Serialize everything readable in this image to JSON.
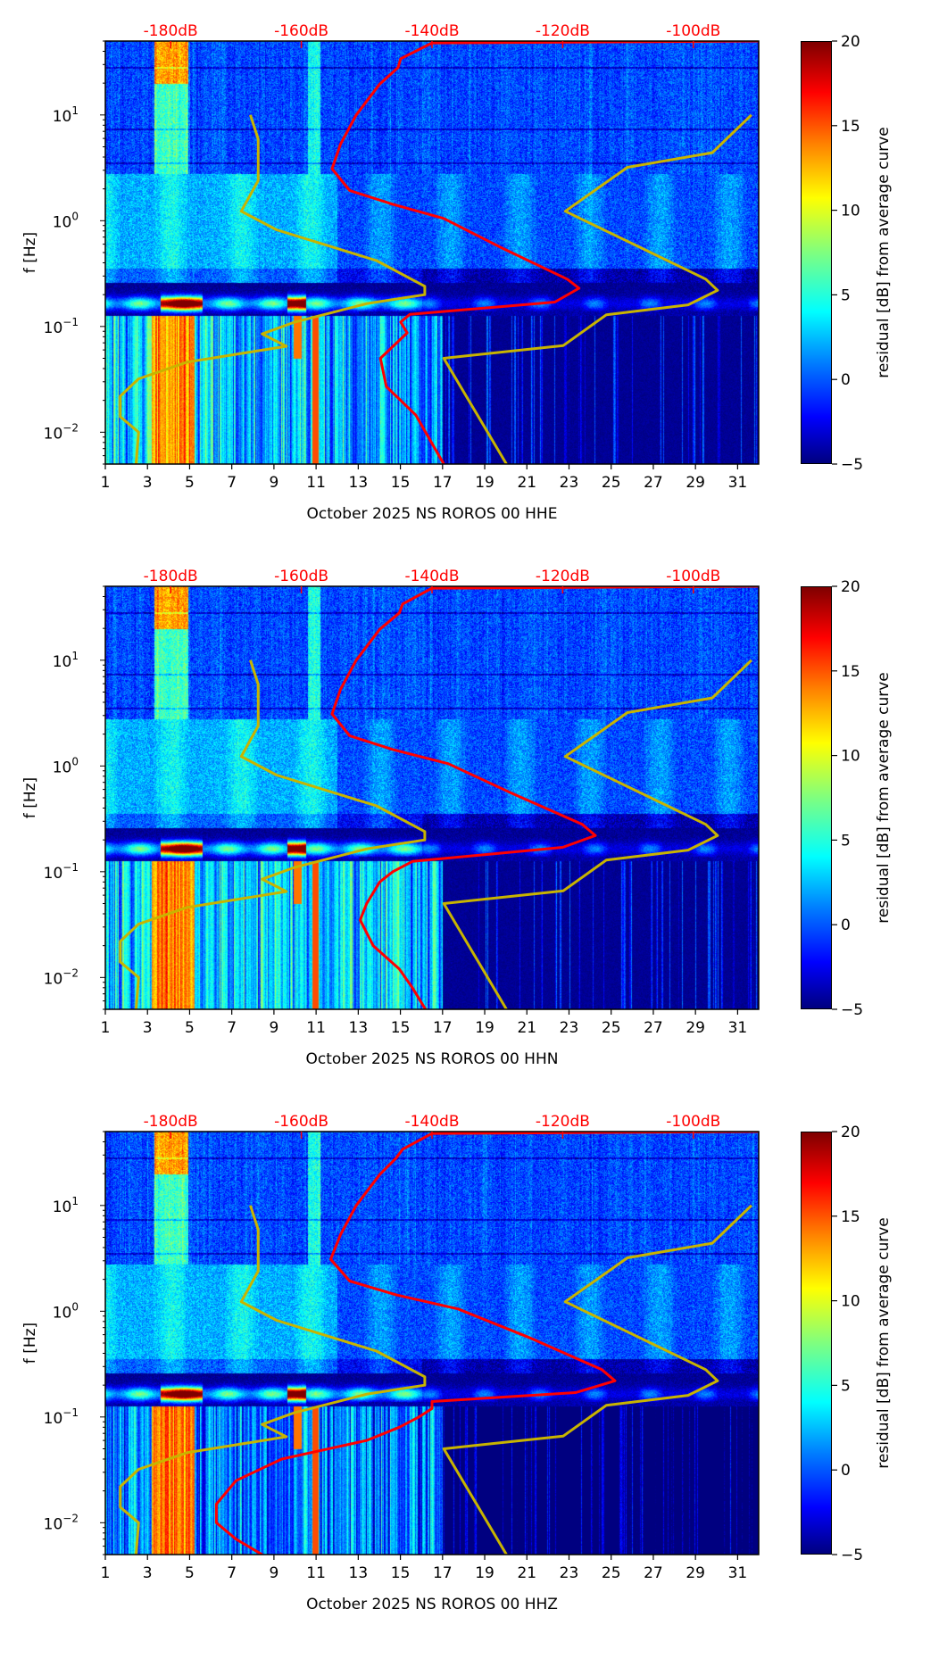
{
  "chart_data": [
    {
      "type": "heatmap",
      "title": "",
      "xlabel": "October 2025 NS ROROS 00 HHE",
      "ylabel": "f [Hz]",
      "xlim": [
        1,
        32
      ],
      "ylim": [
        0.005,
        50
      ],
      "yscale": "log",
      "xticks": [
        "1",
        "3",
        "5",
        "7",
        "9",
        "11",
        "13",
        "15",
        "17",
        "19",
        "21",
        "23",
        "25",
        "27",
        "29",
        "31"
      ],
      "yticks": [
        {
          "value": 10,
          "base": "10",
          "exp": "1"
        },
        {
          "value": 1,
          "base": "10",
          "exp": "0"
        },
        {
          "value": 0.1,
          "base": "10",
          "exp": "−1"
        },
        {
          "value": 0.01,
          "base": "10",
          "exp": "−2"
        }
      ],
      "top_axis": {
        "range_db": [
          -190,
          -90
        ],
        "values": [
          -180,
          -160,
          -140,
          -120,
          -100
        ],
        "labels": [
          "-180dB",
          "-160dB",
          "-140dB",
          "-120dB",
          "-100dB"
        ],
        "color": "#ff0000"
      },
      "colorbar": {
        "label": "residual [dB] from average curve",
        "range": [
          -5,
          20
        ],
        "values": [
          -5,
          0,
          5,
          10,
          15,
          20
        ],
        "labels": [
          "−5",
          "0",
          "5",
          "10",
          "15",
          "20"
        ],
        "colormap": "jet"
      },
      "curves": {
        "psd_curve": {
          "color": "#ff0000",
          "points": [
            [
              50,
              -90
            ],
            [
              48,
              -140
            ],
            [
              34,
              -144.8
            ],
            [
              28,
              -145.2
            ],
            [
              19.6,
              -148
            ],
            [
              10,
              -151.6
            ],
            [
              5.3,
              -154
            ],
            [
              3.1,
              -155.3
            ],
            [
              1.93,
              -152.6
            ],
            [
              1.43,
              -146
            ],
            [
              1.05,
              -138.2
            ],
            [
              0.56,
              -129.5
            ],
            [
              0.28,
              -119.3
            ],
            [
              0.23,
              -117.5
            ],
            [
              0.17,
              -121.2
            ],
            [
              0.13,
              -143.4
            ],
            [
              0.11,
              -144.8
            ],
            [
              0.087,
              -143.8
            ],
            [
              0.05,
              -147.9
            ],
            [
              0.027,
              -147
            ],
            [
              0.0146,
              -142.5
            ],
            [
              0.005,
              -138.2
            ]
          ]
        },
        "low_noise_model": {
          "color": "#c8b400",
          "points": [
            [
              10,
              -167.8
            ],
            [
              5.9,
              -166.6
            ],
            [
              2.4,
              -166.6
            ],
            [
              1.23,
              -169.2
            ],
            [
              0.82,
              -163.8
            ],
            [
              0.42,
              -148.5
            ],
            [
              0.24,
              -141.1
            ],
            [
              0.2,
              -141.1
            ],
            [
              0.165,
              -149.9
            ],
            [
              0.11,
              -161
            ],
            [
              0.085,
              -166
            ],
            [
              0.065,
              -162.3
            ],
            [
              0.046,
              -177.5
            ],
            [
              0.032,
              -184.9
            ],
            [
              0.022,
              -187.7
            ],
            [
              0.014,
              -187.7
            ],
            [
              0.01,
              -184.9
            ],
            [
              0.005,
              -185.3
            ]
          ]
        },
        "high_noise_model": {
          "color": "#c8b400",
          "points": [
            [
              10,
              -91.1
            ],
            [
              4.4,
              -97.1
            ],
            [
              3.2,
              -110.1
            ],
            [
              1.23,
              -119.6
            ],
            [
              0.28,
              -98.1
            ],
            [
              0.22,
              -96.3
            ],
            [
              0.16,
              -100.8
            ],
            [
              0.129,
              -113.3
            ],
            [
              0.066,
              -119.9
            ],
            [
              0.05,
              -138.2
            ],
            [
              0.005,
              -128.6
            ]
          ]
        }
      }
    },
    {
      "type": "heatmap",
      "title": "",
      "xlabel": "October 2025 NS ROROS 00 HHN",
      "ylabel": "f [Hz]",
      "xlim": [
        1,
        32
      ],
      "ylim": [
        0.005,
        50
      ],
      "yscale": "log",
      "xticks": [
        "1",
        "3",
        "5",
        "7",
        "9",
        "11",
        "13",
        "15",
        "17",
        "19",
        "21",
        "23",
        "25",
        "27",
        "29",
        "31"
      ],
      "yticks": [
        {
          "value": 10,
          "base": "10",
          "exp": "1"
        },
        {
          "value": 1,
          "base": "10",
          "exp": "0"
        },
        {
          "value": 0.1,
          "base": "10",
          "exp": "−1"
        },
        {
          "value": 0.01,
          "base": "10",
          "exp": "−2"
        }
      ],
      "top_axis": {
        "range_db": [
          -190,
          -90
        ],
        "values": [
          -180,
          -160,
          -140,
          -120,
          -100
        ],
        "labels": [
          "-180dB",
          "-160dB",
          "-140dB",
          "-120dB",
          "-100dB"
        ],
        "color": "#ff0000"
      },
      "colorbar": {
        "label": "residual [dB] from average curve",
        "range": [
          -5,
          20
        ],
        "values": [
          -5,
          0,
          5,
          10,
          15,
          20
        ],
        "labels": [
          "−5",
          "0",
          "5",
          "10",
          "15",
          "20"
        ],
        "colormap": "jet"
      },
      "curves": {
        "psd_curve": {
          "color": "#ff0000",
          "points": [
            [
              50,
              -90
            ],
            [
              48,
              -140
            ],
            [
              34,
              -144.5
            ],
            [
              28,
              -145
            ],
            [
              19.6,
              -148
            ],
            [
              10,
              -151.6
            ],
            [
              5.3,
              -154
            ],
            [
              3.1,
              -155.3
            ],
            [
              1.93,
              -152.6
            ],
            [
              1.43,
              -146
            ],
            [
              1.05,
              -137.5
            ],
            [
              0.56,
              -128
            ],
            [
              0.28,
              -117
            ],
            [
              0.22,
              -115
            ],
            [
              0.17,
              -120
            ],
            [
              0.125,
              -143
            ],
            [
              0.1,
              -146
            ],
            [
              0.08,
              -148
            ],
            [
              0.05,
              -150
            ],
            [
              0.035,
              -151
            ],
            [
              0.02,
              -149
            ],
            [
              0.012,
              -145
            ],
            [
              0.008,
              -143
            ],
            [
              0.005,
              -141
            ]
          ]
        },
        "low_noise_model": {
          "color": "#c8b400",
          "points": [
            [
              10,
              -167.8
            ],
            [
              5.9,
              -166.6
            ],
            [
              2.4,
              -166.6
            ],
            [
              1.23,
              -169.2
            ],
            [
              0.82,
              -163.8
            ],
            [
              0.42,
              -148.5
            ],
            [
              0.24,
              -141.1
            ],
            [
              0.2,
              -141.1
            ],
            [
              0.165,
              -149.9
            ],
            [
              0.11,
              -161
            ],
            [
              0.085,
              -166
            ],
            [
              0.065,
              -162.3
            ],
            [
              0.046,
              -177.5
            ],
            [
              0.032,
              -184.9
            ],
            [
              0.022,
              -187.7
            ],
            [
              0.014,
              -187.7
            ],
            [
              0.01,
              -184.9
            ],
            [
              0.005,
              -185.3
            ]
          ]
        },
        "high_noise_model": {
          "color": "#c8b400",
          "points": [
            [
              10,
              -91.1
            ],
            [
              4.4,
              -97.1
            ],
            [
              3.2,
              -110.1
            ],
            [
              1.23,
              -119.6
            ],
            [
              0.28,
              -98.1
            ],
            [
              0.22,
              -96.3
            ],
            [
              0.16,
              -100.8
            ],
            [
              0.129,
              -113.3
            ],
            [
              0.066,
              -119.9
            ],
            [
              0.05,
              -138.2
            ],
            [
              0.005,
              -128.6
            ]
          ]
        }
      }
    },
    {
      "type": "heatmap",
      "title": "",
      "xlabel": "October 2025 NS ROROS 00 HHZ",
      "ylabel": "f [Hz]",
      "xlim": [
        1,
        32
      ],
      "ylim": [
        0.005,
        50
      ],
      "yscale": "log",
      "xticks": [
        "1",
        "3",
        "5",
        "7",
        "9",
        "11",
        "13",
        "15",
        "17",
        "19",
        "21",
        "23",
        "25",
        "27",
        "29",
        "31"
      ],
      "yticks": [
        {
          "value": 10,
          "base": "10",
          "exp": "1"
        },
        {
          "value": 1,
          "base": "10",
          "exp": "0"
        },
        {
          "value": 0.1,
          "base": "10",
          "exp": "−1"
        },
        {
          "value": 0.01,
          "base": "10",
          "exp": "−2"
        }
      ],
      "top_axis": {
        "range_db": [
          -190,
          -90
        ],
        "values": [
          -180,
          -160,
          -140,
          -120,
          -100
        ],
        "labels": [
          "-180dB",
          "-160dB",
          "-140dB",
          "-120dB",
          "-100dB"
        ],
        "color": "#ff0000"
      },
      "colorbar": {
        "label": "residual [dB] from average curve",
        "range": [
          -5,
          20
        ],
        "values": [
          -5,
          0,
          5,
          10,
          15,
          20
        ],
        "labels": [
          "−5",
          "0",
          "5",
          "10",
          "15",
          "20"
        ],
        "colormap": "jet"
      },
      "curves": {
        "psd_curve": {
          "color": "#ff0000",
          "points": [
            [
              50,
              -90
            ],
            [
              48,
              -140
            ],
            [
              34,
              -144.5
            ],
            [
              28,
              -145.5
            ],
            [
              19.6,
              -148
            ],
            [
              10,
              -151.6
            ],
            [
              5.3,
              -154
            ],
            [
              3.1,
              -155.5
            ],
            [
              1.93,
              -152.6
            ],
            [
              1.43,
              -145.5
            ],
            [
              1.05,
              -136
            ],
            [
              0.56,
              -125
            ],
            [
              0.28,
              -114
            ],
            [
              0.22,
              -112
            ],
            [
              0.17,
              -118
            ],
            [
              0.14,
              -140
            ],
            [
              0.12,
              -140
            ],
            [
              0.1,
              -142
            ],
            [
              0.08,
              -145
            ],
            [
              0.06,
              -150
            ],
            [
              0.04,
              -163
            ],
            [
              0.025,
              -170
            ],
            [
              0.015,
              -173
            ],
            [
              0.01,
              -173
            ],
            [
              0.007,
              -170
            ],
            [
              0.005,
              -166
            ]
          ]
        },
        "low_noise_model": {
          "color": "#c8b400",
          "points": [
            [
              10,
              -167.8
            ],
            [
              5.9,
              -166.6
            ],
            [
              2.4,
              -166.6
            ],
            [
              1.23,
              -169.2
            ],
            [
              0.82,
              -163.8
            ],
            [
              0.42,
              -148.5
            ],
            [
              0.24,
              -141.1
            ],
            [
              0.2,
              -141.1
            ],
            [
              0.165,
              -149.9
            ],
            [
              0.11,
              -161
            ],
            [
              0.085,
              -166
            ],
            [
              0.065,
              -162.3
            ],
            [
              0.046,
              -177.5
            ],
            [
              0.032,
              -184.9
            ],
            [
              0.022,
              -187.7
            ],
            [
              0.014,
              -187.7
            ],
            [
              0.01,
              -184.9
            ],
            [
              0.005,
              -185.3
            ]
          ]
        },
        "high_noise_model": {
          "color": "#c8b400",
          "points": [
            [
              10,
              -91.1
            ],
            [
              4.4,
              -97.1
            ],
            [
              3.2,
              -110.1
            ],
            [
              1.23,
              -119.6
            ],
            [
              0.28,
              -98.1
            ],
            [
              0.22,
              -96.3
            ],
            [
              0.16,
              -100.8
            ],
            [
              0.129,
              -113.3
            ],
            [
              0.066,
              -119.9
            ],
            [
              0.05,
              -138.2
            ],
            [
              0.005,
              -128.6
            ]
          ]
        }
      }
    }
  ]
}
